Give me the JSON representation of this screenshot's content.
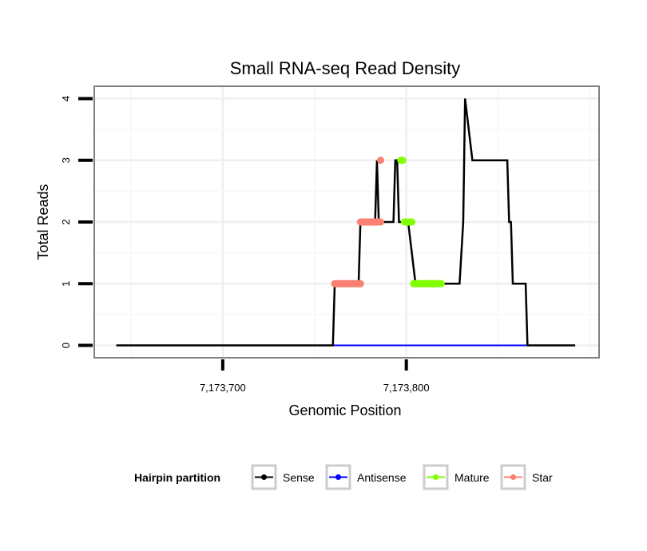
{
  "chart_data": {
    "type": "line",
    "title": "Small RNA-seq Read Density",
    "xlabel": "Genomic Position",
    "ylabel": "Total Reads",
    "xlim": [
      7173630,
      7173905
    ],
    "ylim": [
      -0.2,
      4.2
    ],
    "x_ticks": [
      7173700,
      7173800
    ],
    "x_tick_labels": [
      "7,173,700",
      "7,173,800"
    ],
    "y_ticks": [
      0,
      1,
      2,
      3,
      4
    ],
    "y_tick_labels": [
      "0",
      "1",
      "2",
      "3",
      "4"
    ],
    "grid": true,
    "legend": {
      "title": "Hairpin partition",
      "placement": "bottom",
      "entries": [
        {
          "name": "Sense",
          "color": "#000000"
        },
        {
          "name": "Antisense",
          "color": "#0000ff"
        },
        {
          "name": "Mature",
          "color": "#7fff00"
        },
        {
          "name": "Star",
          "color": "#fa8072"
        }
      ]
    },
    "series": [
      {
        "name": "Sense",
        "color": "#000000",
        "x": [
          7173642,
          7173760,
          7173761,
          7173774,
          7173775,
          7173783,
          7173784,
          7173785,
          7173793,
          7173794,
          7173795,
          7173796,
          7173801,
          7173805,
          7173829,
          7173831,
          7173832,
          7173836,
          7173855,
          7173856,
          7173857,
          7173858,
          7173864,
          7173865,
          7173866,
          7173867,
          7173873,
          7173874,
          7173892
        ],
        "y": [
          0,
          0,
          1,
          1,
          2,
          2,
          3,
          2,
          2,
          3,
          3,
          2,
          2,
          1,
          1,
          2,
          4,
          3,
          3,
          2,
          2,
          1,
          1,
          1,
          0,
          0,
          0,
          0,
          0
        ]
      },
      {
        "name": "Antisense",
        "color": "#0000ff",
        "x": [
          7173760,
          7173866
        ],
        "y": [
          0,
          0
        ]
      },
      {
        "name": "Star",
        "color": "#fa8072",
        "segments": [
          {
            "x": [
              7173761,
              7173775
            ],
            "y": 1
          },
          {
            "x": [
              7173775,
              7173786
            ],
            "y": 2
          },
          {
            "x": [
              7173786,
              7173786
            ],
            "y": 3
          }
        ]
      },
      {
        "name": "Mature",
        "color": "#7fff00",
        "segments": [
          {
            "x": [
              7173797,
              7173798
            ],
            "y": 3
          },
          {
            "x": [
              7173799,
              7173803
            ],
            "y": 2
          },
          {
            "x": [
              7173804,
              7173819
            ],
            "y": 1
          }
        ]
      }
    ]
  }
}
